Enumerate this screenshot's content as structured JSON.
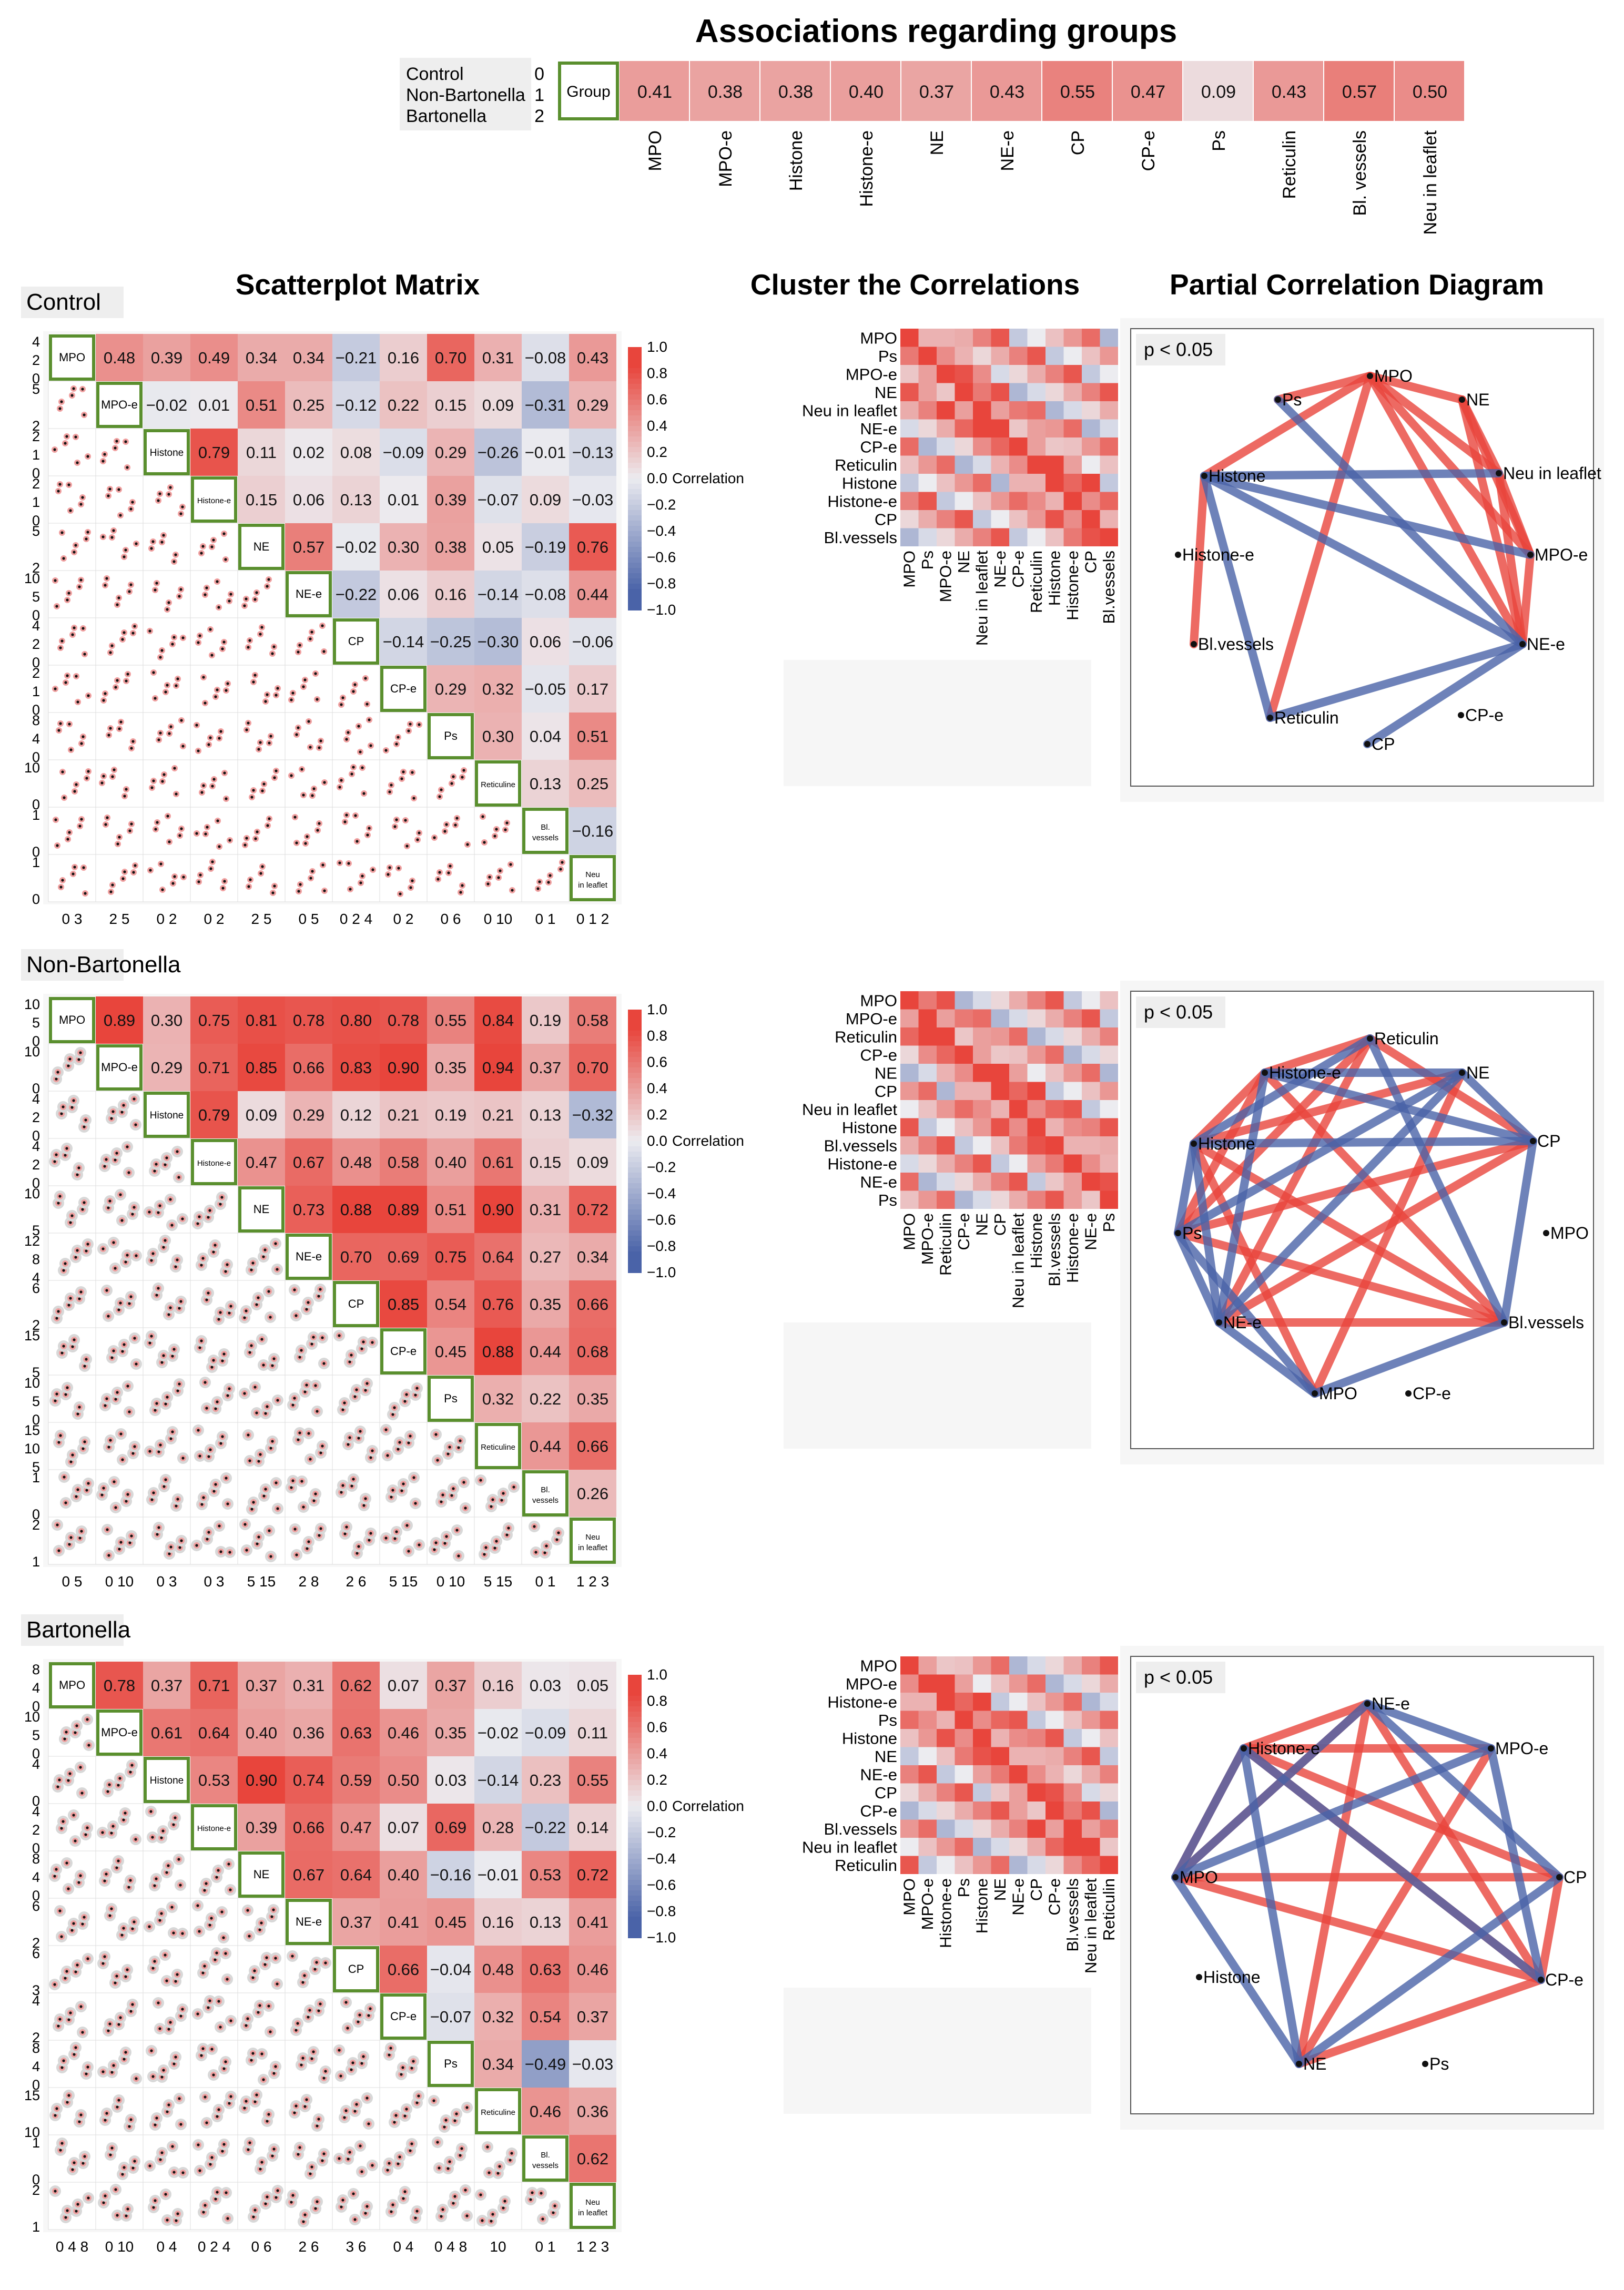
{
  "header": {
    "title": "Associations regarding groups",
    "legend": [
      {
        "label": "Control",
        "code": "0"
      },
      {
        "label": "Non-Bartonella",
        "code": "1"
      },
      {
        "label": "Bartonella",
        "code": "2"
      }
    ],
    "group_label": "Group"
  },
  "sections": {
    "scatterplot_title": "Scatterplot Matrix",
    "cluster_title": "Cluster the Correlations",
    "partial_title": "Partial Correlation Diagram",
    "colorbar_label": "Correlation",
    "colorbar_ticks": [
      "1.0",
      "0.8",
      "0.6",
      "0.4",
      "0.2",
      "0.0",
      "−0.2",
      "−0.4",
      "−0.6",
      "−0.8",
      "−1.0"
    ],
    "pvalue_label": "p < 0.05"
  },
  "colors": {
    "positive": "#e8453c",
    "negative": "#4a63a8",
    "neutral": "#d9d9d9",
    "frame_green": "#5a8f2e",
    "panel_gray": "#eeeeee"
  },
  "chart_data": [
    {
      "type": "heatmap",
      "name": "group_associations",
      "title": "Associations regarding groups",
      "row": "Group",
      "categories": [
        "MPO",
        "MPO-e",
        "Histone",
        "Histone-e",
        "NE",
        "NE-e",
        "CP",
        "CP-e",
        "Ps",
        "Reticulin",
        "Bl. vessels",
        "Neu in leaflet"
      ],
      "values": [
        "0.41",
        "0.38",
        "0.38",
        "0.40",
        "0.37",
        "0.43",
        "0.55",
        "0.47",
        "0.09",
        "0.43",
        "0.57",
        "0.50"
      ]
    },
    {
      "type": "table",
      "name": "control",
      "panel_title": "Control",
      "variables": [
        "MPO",
        "MPO-e",
        "Histone",
        "Histone-e",
        "NE",
        "NE-e",
        "CP",
        "CP-e",
        "Ps",
        "Reticuline",
        "Bl. vessels",
        "Neu in leaflet"
      ],
      "correlations": [
        [
          "0.48",
          "0.39",
          "0.49",
          "0.34",
          "0.34",
          "−0.21",
          "0.16",
          "0.70",
          "0.31",
          "−0.08",
          "0.43"
        ],
        [
          "−0.02",
          "0.01",
          "0.51",
          "0.25",
          "−0.12",
          "0.22",
          "0.15",
          "0.09",
          "−0.31",
          "0.29"
        ],
        [
          "0.79",
          "0.11",
          "0.02",
          "0.08",
          "−0.09",
          "0.29",
          "−0.26",
          "−0.01",
          "−0.13"
        ],
        [
          "0.15",
          "0.06",
          "0.13",
          "0.01",
          "0.39",
          "−0.07",
          "0.09",
          "−0.03"
        ],
        [
          "0.57",
          "−0.02",
          "0.30",
          "0.38",
          "0.05",
          "−0.19",
          "0.76"
        ],
        [
          "−0.22",
          "0.06",
          "0.16",
          "−0.14",
          "−0.08",
          "0.44"
        ],
        [
          "−0.14",
          "−0.25",
          "−0.30",
          "0.06",
          "−0.06"
        ],
        [
          "0.29",
          "0.32",
          "−0.05",
          "0.17"
        ],
        [
          "0.30",
          "0.04",
          "0.51"
        ],
        [
          "0.13",
          "0.25"
        ],
        [
          "−0.16"
        ]
      ],
      "y_ticks": [
        [
          "4",
          "2",
          "0"
        ],
        [
          "5",
          "2"
        ],
        [
          "2",
          "1",
          "0"
        ],
        [
          "2",
          "1",
          "0"
        ],
        [
          "5",
          "2"
        ],
        [
          "10",
          "5",
          "0"
        ],
        [
          "4",
          "2",
          "0"
        ],
        [
          "2",
          "1",
          "0"
        ],
        [
          "8",
          "4",
          "0"
        ],
        [
          "10",
          "0"
        ],
        [
          "1",
          "0"
        ],
        [
          "1",
          "0"
        ]
      ],
      "x_ticks": [
        "0 3",
        "2 5",
        "0 2",
        "0 2",
        "2 5",
        "0 5",
        "0 2 4",
        "0 2",
        "0 6",
        "0 10",
        "0 1",
        "0 1 2"
      ],
      "cluster_labels": [
        "MPO",
        "Ps",
        "MPO-e",
        "NE",
        "Neu in leaflet",
        "NE-e",
        "CP-e",
        "Reticulin",
        "Histone",
        "Histone-e",
        "CP",
        "Bl.vessels"
      ],
      "network": {
        "nodes": [
          "MPO",
          "Ps",
          "NE",
          "Histone",
          "Neu in leaflet",
          "Histone-e",
          "MPO-e",
          "Bl.vessels",
          "NE-e",
          "Reticulin",
          "CP-e",
          "CP"
        ],
        "edges": [
          {
            "a": "MPO",
            "b": "Ps",
            "sign": "+"
          },
          {
            "a": "MPO",
            "b": "NE",
            "sign": "+"
          },
          {
            "a": "MPO",
            "b": "Neu in leaflet",
            "sign": "+"
          },
          {
            "a": "MPO",
            "b": "MPO-e",
            "sign": "+"
          },
          {
            "a": "MPO",
            "b": "Histone",
            "sign": "+"
          },
          {
            "a": "MPO",
            "b": "Reticulin",
            "sign": "+"
          },
          {
            "a": "MPO",
            "b": "NE-e",
            "sign": "+"
          },
          {
            "a": "NE",
            "b": "Neu in leaflet",
            "sign": "+"
          },
          {
            "a": "NE",
            "b": "MPO-e",
            "sign": "+"
          },
          {
            "a": "NE",
            "b": "NE-e",
            "sign": "+"
          },
          {
            "a": "Neu in leaflet",
            "b": "MPO-e",
            "sign": "+"
          },
          {
            "a": "Neu in leaflet",
            "b": "NE-e",
            "sign": "+"
          },
          {
            "a": "MPO-e",
            "b": "NE-e",
            "sign": "+"
          },
          {
            "a": "Histone",
            "b": "Bl.vessels",
            "sign": "+"
          },
          {
            "a": "Ps",
            "b": "NE-e",
            "sign": "-"
          },
          {
            "a": "Histone",
            "b": "MPO-e",
            "sign": "-"
          },
          {
            "a": "Histone",
            "b": "NE-e",
            "sign": "-"
          },
          {
            "a": "Histone",
            "b": "Reticulin",
            "sign": "-"
          },
          {
            "a": "Reticulin",
            "b": "NE-e",
            "sign": "-"
          },
          {
            "a": "CP",
            "b": "NE-e",
            "sign": "-"
          },
          {
            "a": "Neu in leaflet",
            "b": "Histone",
            "sign": "-"
          }
        ]
      }
    },
    {
      "type": "table",
      "name": "non_bartonella",
      "panel_title": "Non-Bartonella",
      "variables": [
        "MPO",
        "MPO-e",
        "Histone",
        "Histone-e",
        "NE",
        "NE-e",
        "CP",
        "CP-e",
        "Ps",
        "Reticuline",
        "Bl. vessels",
        "Neu in leaflet"
      ],
      "correlations": [
        [
          "0.89",
          "0.30",
          "0.75",
          "0.81",
          "0.78",
          "0.80",
          "0.78",
          "0.55",
          "0.84",
          "0.19",
          "0.58"
        ],
        [
          "0.29",
          "0.71",
          "0.85",
          "0.66",
          "0.83",
          "0.90",
          "0.35",
          "0.94",
          "0.37",
          "0.70"
        ],
        [
          "0.79",
          "0.09",
          "0.29",
          "0.12",
          "0.21",
          "0.19",
          "0.21",
          "0.13",
          "−0.32"
        ],
        [
          "0.47",
          "0.67",
          "0.48",
          "0.58",
          "0.40",
          "0.61",
          "0.15",
          "0.09"
        ],
        [
          "0.73",
          "0.88",
          "0.89",
          "0.51",
          "0.90",
          "0.31",
          "0.72"
        ],
        [
          "0.70",
          "0.69",
          "0.75",
          "0.64",
          "0.27",
          "0.34"
        ],
        [
          "0.85",
          "0.54",
          "0.76",
          "0.35",
          "0.66"
        ],
        [
          "0.45",
          "0.88",
          "0.44",
          "0.68"
        ],
        [
          "0.32",
          "0.22",
          "0.35"
        ],
        [
          "0.44",
          "0.66"
        ],
        [
          "0.26"
        ]
      ],
      "y_ticks": [
        [
          "10",
          "5",
          "0"
        ],
        [
          "10",
          "0"
        ],
        [
          "4",
          "2",
          "0"
        ],
        [
          "4",
          "2",
          "0"
        ],
        [
          "10",
          "5"
        ],
        [
          "12",
          "8",
          "4"
        ],
        [
          "6",
          "2"
        ],
        [
          "15",
          "5"
        ],
        [
          "10",
          "5",
          "0"
        ],
        [
          "15",
          "10",
          "5"
        ],
        [
          "1",
          "0"
        ],
        [
          "2",
          "1"
        ]
      ],
      "x_ticks": [
        "0 5",
        "0 10",
        "0 3",
        "0 3",
        "5 15",
        "2 8",
        "2 6",
        "5 15",
        "0 10",
        "5 15",
        "0 1",
        "1 2 3"
      ],
      "cluster_labels": [
        "MPO",
        "MPO-e",
        "Reticulin",
        "CP-e",
        "NE",
        "CP",
        "Neu in leaflet",
        "Histone",
        "Bl.vessels",
        "Histone-e",
        "NE-e",
        "Ps"
      ],
      "network": {
        "nodes": [
          "Reticulin",
          "Histone-e",
          "NE",
          "CP",
          "Histone",
          "MPO",
          "Ps",
          "NE-e",
          "Bl.vessels",
          "MPO",
          "CP-e"
        ],
        "edges": [
          {
            "a": "Histone-e",
            "b": "Reticulin",
            "sign": "+"
          },
          {
            "a": "Reticulin",
            "b": "CP",
            "sign": "+"
          },
          {
            "a": "Histone",
            "b": "Histone-e",
            "sign": "+"
          },
          {
            "a": "Histone",
            "b": "NE",
            "sign": "+"
          },
          {
            "a": "Histone-e",
            "b": "Bl.vessels",
            "sign": "+"
          },
          {
            "a": "Ps",
            "b": "Bl.vessels",
            "sign": "+"
          },
          {
            "a": "Ps",
            "b": "Reticulin",
            "sign": "+"
          },
          {
            "a": "Ps",
            "b": "Histone-e",
            "sign": "+"
          },
          {
            "a": "NE-e",
            "b": "Reticulin",
            "sign": "+"
          },
          {
            "a": "NE-e",
            "b": "CP",
            "sign": "+"
          },
          {
            "a": "NE-e",
            "b": "Bl.vessels",
            "sign": "+"
          },
          {
            "a": "Histone",
            "b": "Bl.vessels",
            "sign": "+"
          },
          {
            "a": "NE",
            "b": "MPO",
            "sign": "+"
          },
          {
            "a": "Histone",
            "b": "MPO",
            "sign": "+"
          },
          {
            "a": "CP",
            "b": "Ps",
            "sign": "+"
          },
          {
            "a": "Histone-e",
            "b": "NE",
            "sign": "-"
          },
          {
            "a": "NE",
            "b": "CP",
            "sign": "-"
          },
          {
            "a": "CP",
            "b": "Bl.vessels",
            "sign": "-"
          },
          {
            "a": "Histone",
            "b": "CP",
            "sign": "-"
          },
          {
            "a": "Histone",
            "b": "Ps",
            "sign": "-"
          },
          {
            "a": "Ps",
            "b": "NE-e",
            "sign": "-"
          },
          {
            "a": "NE-e",
            "b": "MPO",
            "sign": "-"
          },
          {
            "a": "MPO",
            "b": "Bl.vessels",
            "sign": "-"
          },
          {
            "a": "NE-e",
            "b": "Histone-e",
            "sign": "-"
          },
          {
            "a": "Histone",
            "b": "Reticulin",
            "sign": "-"
          },
          {
            "a": "NE",
            "b": "Ps",
            "sign": "-"
          },
          {
            "a": "NE",
            "b": "NE-e",
            "sign": "-"
          },
          {
            "a": "Histone-e",
            "b": "CP",
            "sign": "-"
          },
          {
            "a": "Reticulin",
            "b": "Bl.vessels",
            "sign": "-"
          },
          {
            "a": "Histone",
            "b": "NE-e",
            "sign": "-"
          },
          {
            "a": "Ps",
            "b": "MPO",
            "sign": "-"
          }
        ]
      }
    },
    {
      "type": "table",
      "name": "bartonella",
      "panel_title": "Bartonella",
      "variables": [
        "MPO",
        "MPO-e",
        "Histone",
        "Histone-e",
        "NE",
        "NE-e",
        "CP",
        "CP-e",
        "Ps",
        "Reticuline",
        "Bl. vessels",
        "Neu in leaflet"
      ],
      "correlations": [
        [
          "0.78",
          "0.37",
          "0.71",
          "0.37",
          "0.31",
          "0.62",
          "0.07",
          "0.37",
          "0.16",
          "0.03",
          "0.05"
        ],
        [
          "0.61",
          "0.64",
          "0.40",
          "0.36",
          "0.63",
          "0.46",
          "0.35",
          "−0.02",
          "−0.09",
          "0.11"
        ],
        [
          "0.53",
          "0.90",
          "0.74",
          "0.59",
          "0.50",
          "0.03",
          "−0.14",
          "0.23",
          "0.55"
        ],
        [
          "0.39",
          "0.66",
          "0.47",
          "0.07",
          "0.69",
          "0.28",
          "−0.22",
          "0.14"
        ],
        [
          "0.67",
          "0.64",
          "0.40",
          "−0.16",
          "−0.01",
          "0.53",
          "0.72"
        ],
        [
          "0.37",
          "0.41",
          "0.45",
          "0.16",
          "0.13",
          "0.41"
        ],
        [
          "0.66",
          "−0.04",
          "0.48",
          "0.63",
          "0.46"
        ],
        [
          "−0.07",
          "0.32",
          "0.54",
          "0.37"
        ],
        [
          "0.34",
          "−0.49",
          "−0.03"
        ],
        [
          "0.46",
          "0.36"
        ],
        [
          "0.62"
        ]
      ],
      "y_ticks": [
        [
          "8",
          "4",
          "0"
        ],
        [
          "10",
          "5",
          "0"
        ],
        [
          "4",
          "0"
        ],
        [
          "4",
          "2",
          "0"
        ],
        [
          "8",
          "4",
          "0"
        ],
        [
          "6",
          "2"
        ],
        [
          "6",
          "3"
        ],
        [
          "4",
          "2"
        ],
        [
          "8",
          "4",
          "0"
        ],
        [
          "15",
          "10"
        ],
        [
          "1",
          "0"
        ],
        [
          "2",
          "1"
        ]
      ],
      "x_ticks": [
        "0 4 8",
        "0 10",
        "0 4",
        "0 2 4",
        "0 6",
        "2 6",
        "3 6",
        "0 4",
        "0 4 8",
        "10",
        "0 1",
        "1 2 3"
      ],
      "cluster_labels": [
        "MPO",
        "MPO-e",
        "Histone-e",
        "Ps",
        "Histone",
        "NE",
        "NE-e",
        "CP",
        "CP-e",
        "Bl.vessels",
        "Neu in leaflet",
        "Reticulin"
      ],
      "network": {
        "nodes": [
          "NE-e",
          "Histone-e",
          "MPO-e",
          "MPO",
          "CP",
          "Histone",
          "CP-e",
          "NE",
          "Ps"
        ],
        "edges": [
          {
            "a": "Histone-e",
            "b": "NE-e",
            "sign": "+"
          },
          {
            "a": "Histone-e",
            "b": "MPO-e",
            "sign": "+"
          },
          {
            "a": "Histone-e",
            "b": "MPO",
            "sign": "+"
          },
          {
            "a": "Histone-e",
            "b": "CP",
            "sign": "+"
          },
          {
            "a": "MPO",
            "b": "CP",
            "sign": "+"
          },
          {
            "a": "MPO",
            "b": "NE-e",
            "sign": "+"
          },
          {
            "a": "MPO",
            "b": "CP-e",
            "sign": "+"
          },
          {
            "a": "NE-e",
            "b": "CP-e",
            "sign": "+"
          },
          {
            "a": "NE-e",
            "b": "NE",
            "sign": "+"
          },
          {
            "a": "MPO-e",
            "b": "NE",
            "sign": "+"
          },
          {
            "a": "CP",
            "b": "CP-e",
            "sign": "+"
          },
          {
            "a": "Histone-e",
            "b": "CP-e",
            "sign": "+"
          },
          {
            "a": "NE",
            "b": "CP-e",
            "sign": "+"
          },
          {
            "a": "NE-e",
            "b": "MPO-e",
            "sign": "-"
          },
          {
            "a": "NE-e",
            "b": "CP",
            "sign": "-"
          },
          {
            "a": "MPO",
            "b": "MPO-e",
            "sign": "-"
          },
          {
            "a": "MPO",
            "b": "NE",
            "sign": "-"
          },
          {
            "a": "Histone-e",
            "b": "NE",
            "sign": "-"
          },
          {
            "a": "NE",
            "b": "CP",
            "sign": "-"
          },
          {
            "a": "Histone-e",
            "b": "CP-e",
            "sign": "-"
          },
          {
            "a": "MPO",
            "b": "Histone-e",
            "sign": "-"
          },
          {
            "a": "NE-e",
            "b": "MPO",
            "sign": "-"
          },
          {
            "a": "MPO-e",
            "b": "CP-e",
            "sign": "-"
          }
        ]
      }
    }
  ]
}
